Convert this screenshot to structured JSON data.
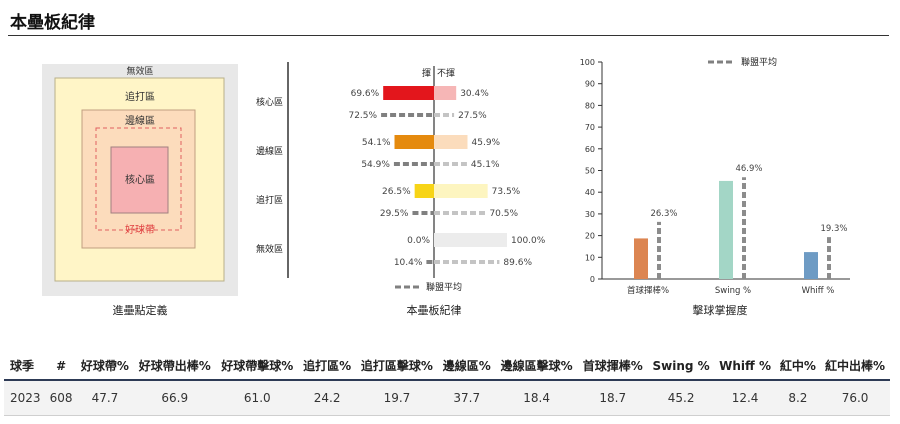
{
  "section_title": "本壘板紀律",
  "zone_diagram": {
    "caption": "進壘點定義",
    "labels": {
      "waste": "無效區",
      "chase": "追打區",
      "shadow": "邊線區",
      "heart": "核心區",
      "strike": "好球帶"
    }
  },
  "discipline_chart": {
    "caption": "本壘板紀律",
    "swing_header": "揮",
    "take_header": "不揮",
    "legend": "聯盟平均",
    "zones": [
      {
        "label": "核心區",
        "color": "#e3161c",
        "light": "#f6b6b6",
        "player": {
          "swing": 69.6,
          "take": 30.4,
          "swing_label": "69.6%",
          "take_label": "30.4%"
        },
        "league": {
          "swing": 72.5,
          "take": 27.5,
          "swing_label": "72.5%",
          "take_label": "27.5%"
        }
      },
      {
        "label": "邊線區",
        "color": "#e58a0e",
        "light": "#fbdcbc",
        "player": {
          "swing": 54.1,
          "take": 45.9,
          "swing_label": "54.1%",
          "take_label": "45.9%"
        },
        "league": {
          "swing": 54.9,
          "take": 45.1,
          "swing_label": "54.9%",
          "take_label": "45.1%"
        }
      },
      {
        "label": "追打區",
        "color": "#f7d417",
        "light": "#fdf5c0",
        "player": {
          "swing": 26.5,
          "take": 73.5,
          "swing_label": "26.5%",
          "take_label": "73.5%"
        },
        "league": {
          "swing": 29.5,
          "take": 70.5,
          "swing_label": "29.5%",
          "take_label": "70.5%"
        }
      },
      {
        "label": "無效區",
        "color": "#bfbfbf",
        "light": "#ececec",
        "player": {
          "swing": 0.0,
          "take": 100.0,
          "swing_label": "0.0%",
          "take_label": "100.0%"
        },
        "league": {
          "swing": 10.4,
          "take": 89.6,
          "swing_label": "10.4%",
          "take_label": "89.6%"
        }
      }
    ]
  },
  "chart_data": {
    "type": "bar",
    "title": "擊球掌握度",
    "categories": [
      "首球揮棒%",
      "Swing %",
      "Whiff %"
    ],
    "series": [
      {
        "values": [
          18.7,
          45.2,
          12.4
        ],
        "colors": [
          "#dc8551",
          "#a3d6c6",
          "#6e9bc4"
        ]
      },
      {
        "name": "聯盟平均",
        "values": [
          26.3,
          46.9,
          19.3
        ],
        "value_labels": [
          "26.3%",
          "46.9%",
          "19.3%"
        ],
        "style": "dashed",
        "color": "#8c8c8c"
      }
    ],
    "ylim": [
      0,
      100
    ],
    "yticks": [
      0,
      10,
      20,
      30,
      40,
      50,
      60,
      70,
      80,
      90,
      100
    ],
    "legend": "top-right",
    "grid": false
  },
  "table": {
    "headers": [
      "球季",
      "#",
      "好球帶%",
      "好球帶出棒%",
      "好球帶擊球%",
      "追打區%",
      "追打區擊球%",
      "邊線區%",
      "邊線區擊球%",
      "首球揮棒%",
      "Swing %",
      "Whiff %",
      "紅中%",
      "紅中出棒%"
    ],
    "rows": [
      [
        "2023",
        "608",
        "47.7",
        "66.9",
        "61.0",
        "24.2",
        "19.7",
        "37.7",
        "18.4",
        "18.7",
        "45.2",
        "12.4",
        "8.2",
        "76.0"
      ]
    ]
  }
}
